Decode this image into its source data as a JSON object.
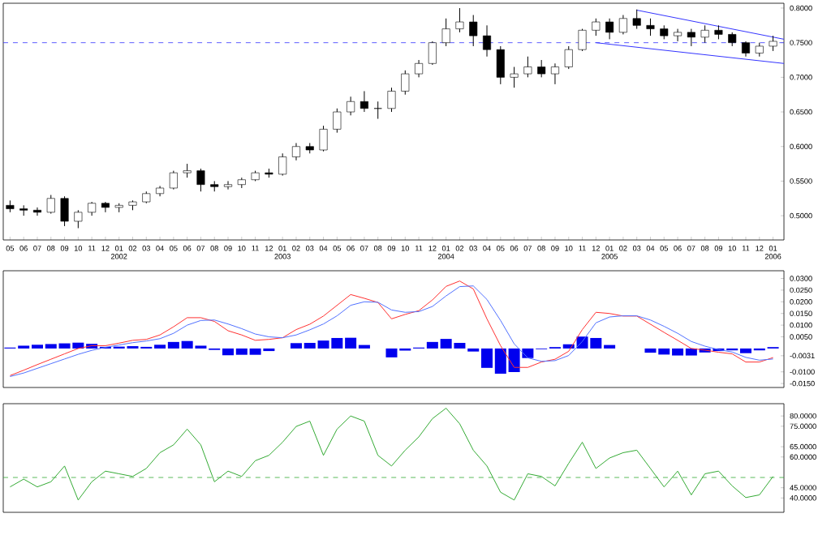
{
  "chart_data": [
    {
      "type": "candlestick",
      "x": [
        "2001-05",
        "2001-06",
        "2001-07",
        "2001-08",
        "2001-09",
        "2001-10",
        "2001-11",
        "2001-12",
        "2002-01",
        "2002-02",
        "2002-03",
        "2002-04",
        "2002-05",
        "2002-06",
        "2002-07",
        "2002-08",
        "2002-09",
        "2002-10",
        "2002-11",
        "2002-12",
        "2003-01",
        "2003-02",
        "2003-03",
        "2003-04",
        "2003-05",
        "2003-06",
        "2003-07",
        "2003-08",
        "2003-09",
        "2003-10",
        "2003-11",
        "2003-12",
        "2004-01",
        "2004-02",
        "2004-03",
        "2004-04",
        "2004-05",
        "2004-06",
        "2004-07",
        "2004-08",
        "2004-09",
        "2004-10",
        "2004-11",
        "2004-12",
        "2005-01",
        "2005-02",
        "2005-03",
        "2005-04",
        "2005-05",
        "2005-06",
        "2005-07",
        "2005-08",
        "2005-09",
        "2005-10",
        "2005-11",
        "2005-12",
        "2006-01"
      ],
      "ohlc": [
        [
          0.515,
          0.522,
          0.505,
          0.51
        ],
        [
          0.51,
          0.515,
          0.5,
          0.508
        ],
        [
          0.508,
          0.512,
          0.5,
          0.505
        ],
        [
          0.505,
          0.53,
          0.503,
          0.525
        ],
        [
          0.525,
          0.528,
          0.485,
          0.492
        ],
        [
          0.492,
          0.508,
          0.482,
          0.505
        ],
        [
          0.505,
          0.52,
          0.5,
          0.518
        ],
        [
          0.518,
          0.52,
          0.505,
          0.512
        ],
        [
          0.512,
          0.518,
          0.505,
          0.515
        ],
        [
          0.515,
          0.522,
          0.508,
          0.52
        ],
        [
          0.52,
          0.535,
          0.518,
          0.532
        ],
        [
          0.532,
          0.543,
          0.528,
          0.54
        ],
        [
          0.54,
          0.565,
          0.538,
          0.562
        ],
        [
          0.562,
          0.575,
          0.555,
          0.565
        ],
        [
          0.565,
          0.568,
          0.535,
          0.545
        ],
        [
          0.545,
          0.55,
          0.535,
          0.542
        ],
        [
          0.542,
          0.55,
          0.538,
          0.545
        ],
        [
          0.545,
          0.555,
          0.54,
          0.552
        ],
        [
          0.552,
          0.565,
          0.55,
          0.562
        ],
        [
          0.562,
          0.568,
          0.555,
          0.56
        ],
        [
          0.56,
          0.59,
          0.558,
          0.585
        ],
        [
          0.585,
          0.605,
          0.58,
          0.6
        ],
        [
          0.6,
          0.605,
          0.59,
          0.595
        ],
        [
          0.595,
          0.63,
          0.593,
          0.625
        ],
        [
          0.625,
          0.655,
          0.62,
          0.65
        ],
        [
          0.65,
          0.672,
          0.645,
          0.665
        ],
        [
          0.665,
          0.68,
          0.65,
          0.655
        ],
        [
          0.655,
          0.665,
          0.64,
          0.655
        ],
        [
          0.655,
          0.685,
          0.65,
          0.68
        ],
        [
          0.68,
          0.71,
          0.675,
          0.705
        ],
        [
          0.705,
          0.725,
          0.7,
          0.72
        ],
        [
          0.72,
          0.752,
          0.718,
          0.75
        ],
        [
          0.75,
          0.785,
          0.745,
          0.77
        ],
        [
          0.77,
          0.8,
          0.765,
          0.78
        ],
        [
          0.78,
          0.79,
          0.745,
          0.76
        ],
        [
          0.76,
          0.775,
          0.73,
          0.74
        ],
        [
          0.74,
          0.745,
          0.69,
          0.7
        ],
        [
          0.7,
          0.715,
          0.685,
          0.705
        ],
        [
          0.705,
          0.73,
          0.7,
          0.715
        ],
        [
          0.715,
          0.725,
          0.7,
          0.705
        ],
        [
          0.705,
          0.72,
          0.69,
          0.715
        ],
        [
          0.715,
          0.745,
          0.712,
          0.74
        ],
        [
          0.74,
          0.77,
          0.738,
          0.768
        ],
        [
          0.768,
          0.785,
          0.76,
          0.78
        ],
        [
          0.78,
          0.785,
          0.755,
          0.765
        ],
        [
          0.765,
          0.79,
          0.762,
          0.785
        ],
        [
          0.785,
          0.798,
          0.77,
          0.775
        ],
        [
          0.775,
          0.785,
          0.76,
          0.77
        ],
        [
          0.77,
          0.775,
          0.755,
          0.76
        ],
        [
          0.76,
          0.77,
          0.752,
          0.765
        ],
        [
          0.765,
          0.77,
          0.745,
          0.758
        ],
        [
          0.758,
          0.775,
          0.75,
          0.768
        ],
        [
          0.768,
          0.775,
          0.755,
          0.762
        ],
        [
          0.762,
          0.765,
          0.745,
          0.75
        ],
        [
          0.75,
          0.752,
          0.73,
          0.735
        ],
        [
          0.735,
          0.75,
          0.73,
          0.745
        ],
        [
          0.745,
          0.76,
          0.738,
          0.752
        ]
      ],
      "series": [
        {
          "type": "line",
          "color": "#3333ff",
          "x": [
            "2005-03",
            "2006-01-25"
          ],
          "values": [
            0.797,
            0.755
          ]
        },
        {
          "type": "line",
          "color": "#3333ff",
          "x": [
            "2004-12",
            "2006-01-25"
          ],
          "values": [
            0.75,
            0.72
          ]
        }
      ],
      "ref_lines": [
        {
          "axis": "y",
          "value": 0.75,
          "color": "#3333ff",
          "line_style": "dashed"
        }
      ],
      "xlim": [
        "2001-04-16",
        "2006-01-25"
      ],
      "xticks": [
        {
          "value": "2001-05",
          "label": "05"
        },
        {
          "value": "2001-06",
          "label": "06"
        },
        {
          "value": "2001-07",
          "label": "07"
        },
        {
          "value": "2001-08",
          "label": "08"
        },
        {
          "value": "2001-09",
          "label": "09"
        },
        {
          "value": "2001-10",
          "label": "10"
        },
        {
          "value": "2001-11",
          "label": "11"
        },
        {
          "value": "2001-12",
          "label": "12"
        },
        {
          "value": "2002-01",
          "label": "01"
        },
        {
          "value": "2002-02",
          "label": "02"
        },
        {
          "value": "2002-03",
          "label": "03"
        },
        {
          "value": "2002-04",
          "label": "04"
        },
        {
          "value": "2002-05",
          "label": "05"
        },
        {
          "value": "2002-06",
          "label": "06"
        },
        {
          "value": "2002-07",
          "label": "07"
        },
        {
          "value": "2002-08",
          "label": "08"
        },
        {
          "value": "2002-09",
          "label": "09"
        },
        {
          "value": "2002-10",
          "label": "10"
        },
        {
          "value": "2002-11",
          "label": "11"
        },
        {
          "value": "2002-12",
          "label": "12"
        },
        {
          "value": "2003-01",
          "label": "01"
        },
        {
          "value": "2003-02",
          "label": "02"
        },
        {
          "value": "2003-03",
          "label": "03"
        },
        {
          "value": "2003-04",
          "label": "04"
        },
        {
          "value": "2003-05",
          "label": "05"
        },
        {
          "value": "2003-06",
          "label": "06"
        },
        {
          "value": "2003-07",
          "label": "07"
        },
        {
          "value": "2003-08",
          "label": "08"
        },
        {
          "value": "2003-09",
          "label": "09"
        },
        {
          "value": "2003-10",
          "label": "10"
        },
        {
          "value": "2003-11",
          "label": "11"
        },
        {
          "value": "2003-12",
          "label": "12"
        },
        {
          "value": "2004-01",
          "label": "01"
        },
        {
          "value": "2004-02",
          "label": "02"
        },
        {
          "value": "2004-03",
          "label": "03"
        },
        {
          "value": "2004-04",
          "label": "04"
        },
        {
          "value": "2004-05",
          "label": "05"
        },
        {
          "value": "2004-06",
          "label": "06"
        },
        {
          "value": "2004-07",
          "label": "07"
        },
        {
          "value": "2004-08",
          "label": "08"
        },
        {
          "value": "2004-09",
          "label": "09"
        },
        {
          "value": "2004-10",
          "label": "10"
        },
        {
          "value": "2004-11",
          "label": "11"
        },
        {
          "value": "2004-12",
          "label": "12"
        },
        {
          "value": "2005-01",
          "label": "01"
        },
        {
          "value": "2005-02",
          "label": "02"
        },
        {
          "value": "2005-03",
          "label": "03"
        },
        {
          "value": "2005-04",
          "label": "04"
        },
        {
          "value": "2005-05",
          "label": "05"
        },
        {
          "value": "2005-06",
          "label": "06"
        },
        {
          "value": "2005-07",
          "label": "07"
        },
        {
          "value": "2005-08",
          "label": "08"
        },
        {
          "value": "2005-09",
          "label": "09"
        },
        {
          "value": "2005-10",
          "label": "10"
        },
        {
          "value": "2005-11",
          "label": "11"
        },
        {
          "value": "2005-12",
          "label": "12"
        },
        {
          "value": "2006-01",
          "label": "01"
        }
      ],
      "x2lim": [
        "2001-04-16",
        "2006-01-25"
      ],
      "x2ticks": [
        {
          "value": "2002-01",
          "label": "2002"
        },
        {
          "value": "2003-01",
          "label": "2003"
        },
        {
          "value": "2004-01",
          "label": "2004"
        },
        {
          "value": "2005-01",
          "label": "2005"
        },
        {
          "value": "2006-01",
          "label": "2006"
        }
      ],
      "ylim": [
        0.465,
        0.807
      ],
      "yticks": [
        {
          "value": 0.5,
          "label": "0.5000"
        },
        {
          "value": 0.55,
          "label": "0.5500"
        },
        {
          "value": 0.6,
          "label": "0.6000"
        },
        {
          "value": 0.65,
          "label": "0.6500"
        },
        {
          "value": 0.7,
          "label": "0.7000"
        },
        {
          "value": 0.75,
          "label": "0.7500"
        },
        {
          "value": 0.8,
          "label": "0.8000"
        }
      ]
    },
    {
      "type": "line",
      "x": [
        "2001-05",
        "2001-06",
        "2001-07",
        "2001-08",
        "2001-09",
        "2001-10",
        "2001-11",
        "2001-12",
        "2002-01",
        "2002-02",
        "2002-03",
        "2002-04",
        "2002-05",
        "2002-06",
        "2002-07",
        "2002-08",
        "2002-09",
        "2002-10",
        "2002-11",
        "2002-12",
        "2003-01",
        "2003-02",
        "2003-03",
        "2003-04",
        "2003-05",
        "2003-06",
        "2003-07",
        "2003-08",
        "2003-09",
        "2003-10",
        "2003-11",
        "2003-12",
        "2004-01",
        "2004-02",
        "2004-03",
        "2004-04",
        "2004-05",
        "2004-06",
        "2004-07",
        "2004-08",
        "2004-09",
        "2004-10",
        "2004-11",
        "2004-12",
        "2005-01",
        "2005-02",
        "2005-03",
        "2005-04",
        "2005-05",
        "2005-06",
        "2005-07",
        "2005-08",
        "2005-09",
        "2005-10",
        "2005-11",
        "2005-12",
        "2006-01"
      ],
      "series": [
        {
          "type": "bar",
          "color": "#0000ee",
          "values": [
            0.0004,
            0.0012,
            0.0016,
            0.0019,
            0.0022,
            0.0025,
            0.002,
            0.0007,
            0.0008,
            0.001,
            0.0007,
            0.0016,
            0.0028,
            0.0032,
            0.0012,
            -0.0006,
            -0.0029,
            -0.0027,
            -0.0027,
            -0.0011,
            0,
            0.0023,
            0.0024,
            0.0034,
            0.0045,
            0.0046,
            0.0015,
            null,
            -0.0038,
            -0.0009,
            0.0004,
            0.0028,
            0.0041,
            0.0024,
            -0.0013,
            -0.0083,
            -0.0108,
            -0.0101,
            -0.0041,
            -0.0003,
            0.0006,
            0.0018,
            0.0051,
            0.0045,
            0.0015,
            null,
            null,
            -0.0018,
            -0.0026,
            -0.003,
            -0.003,
            -0.0017,
            -0.0011,
            -0.0008,
            -0.002,
            -0.0008,
            0.0006
          ]
        },
        {
          "type": "line",
          "color": "#ff3030",
          "values": [
            -0.0116,
            -0.0093,
            -0.0069,
            -0.0046,
            -0.0023,
            0,
            0.0012,
            0.0012,
            0.0023,
            0.0035,
            0.0039,
            0.0058,
            0.0093,
            0.0132,
            0.0132,
            0.0116,
            0.0076,
            0.0058,
            0.0035,
            0.0039,
            0.0046,
            0.0081,
            0.0104,
            0.0139,
            0.0185,
            0.0231,
            0.0215,
            0.0197,
            0.0127,
            0.0146,
            0.0162,
            0.0208,
            0.0266,
            0.0289,
            0.0255,
            0.0127,
            0.0012,
            -0.0081,
            -0.0081,
            -0.0058,
            -0.0046,
            -0.0012,
            0.0081,
            0.0155,
            0.015,
            0.0139,
            0.0139,
            0.0104,
            0.0069,
            0.0035,
            0,
            -0.0007,
            -0.0016,
            -0.0023,
            -0.0058,
            -0.0058,
            -0.0039
          ]
        },
        {
          "type": "line",
          "color": "#5070ff",
          "values": [
            -0.012,
            -0.0105,
            -0.0085,
            -0.0065,
            -0.0045,
            -0.0025,
            -0.0008,
            0.0005,
            0.0015,
            0.0025,
            0.0032,
            0.0042,
            0.0065,
            0.01,
            0.012,
            0.0122,
            0.0105,
            0.0085,
            0.0062,
            0.005,
            0.0046,
            0.0058,
            0.008,
            0.0105,
            0.014,
            0.0185,
            0.02,
            0.0198,
            0.0165,
            0.0155,
            0.0158,
            0.018,
            0.0225,
            0.0265,
            0.0268,
            0.021,
            0.012,
            0.002,
            -0.004,
            -0.0055,
            -0.0052,
            -0.003,
            0.003,
            0.011,
            0.0135,
            0.014,
            0.014,
            0.0122,
            0.0095,
            0.0065,
            0.003,
            0.001,
            -0.0005,
            -0.0015,
            -0.0038,
            -0.005,
            -0.0045
          ]
        }
      ],
      "xlim": [
        "2001-04-16",
        "2006-01-25"
      ],
      "ylim": [
        -0.0167,
        0.0333
      ],
      "yticks": [
        {
          "value": 0.03,
          "label": "0.0300"
        },
        {
          "value": 0.025,
          "label": "0.0250"
        },
        {
          "value": 0.02,
          "label": "0.0200"
        },
        {
          "value": 0.015,
          "label": "0.0150"
        },
        {
          "value": 0.01,
          "label": "0.0100"
        },
        {
          "value": 0.005,
          "label": "0.0050"
        },
        {
          "value": -0.0031,
          "label": "-0.0031"
        },
        {
          "value": -0.01,
          "label": "-0.0100"
        },
        {
          "value": -0.015,
          "label": "-0.0150"
        }
      ],
      "tick_labels": "y"
    },
    {
      "type": "line",
      "x": [
        "2001-05",
        "2001-06",
        "2001-07",
        "2001-08",
        "2001-09",
        "2001-10",
        "2001-11",
        "2001-12",
        "2002-01",
        "2002-02",
        "2002-03",
        "2002-04",
        "2002-05",
        "2002-06",
        "2002-07",
        "2002-08",
        "2002-09",
        "2002-10",
        "2002-11",
        "2002-12",
        "2003-01",
        "2003-02",
        "2003-03",
        "2003-04",
        "2003-05",
        "2003-06",
        "2003-07",
        "2003-08",
        "2003-09",
        "2003-10",
        "2003-11",
        "2003-12",
        "2004-01",
        "2004-02",
        "2004-03",
        "2004-04",
        "2004-05",
        "2004-06",
        "2004-07",
        "2004-08",
        "2004-09",
        "2004-10",
        "2004-11",
        "2004-12",
        "2005-01",
        "2005-02",
        "2005-03",
        "2005-04",
        "2005-05",
        "2005-06",
        "2005-07",
        "2005-08",
        "2005-09",
        "2005-10",
        "2005-11",
        "2005-12",
        "2006-01"
      ],
      "series": [
        {
          "type": "line",
          "color": "#33aa33",
          "values": [
            45.4,
            49.2,
            45.4,
            47.9,
            55.6,
            39,
            47.9,
            53.1,
            51.8,
            50.5,
            54.4,
            62.1,
            65.9,
            73.6,
            65.9,
            47.9,
            53.1,
            50.5,
            58.2,
            60.8,
            67.2,
            74.9,
            77.5,
            60.8,
            73.6,
            80,
            77.5,
            60.8,
            55.6,
            63.3,
            69.8,
            78.7,
            83.8,
            76.2,
            63.3,
            55.6,
            42.8,
            39,
            51.8,
            50.5,
            45.9,
            56.9,
            67.2,
            54.4,
            59.5,
            62.1,
            63.3,
            54.4,
            45.4,
            53.1,
            41.5,
            51.8,
            53.1,
            45.9,
            40.2,
            41.5,
            50.5
          ]
        }
      ],
      "ref_lines": [
        {
          "axis": "y",
          "value": 50,
          "color": "#33aa33",
          "line_style": "dashed"
        }
      ],
      "xlim": [
        "2001-04-16",
        "2006-01-25"
      ],
      "ylim": [
        33,
        86
      ],
      "yticks": [
        {
          "value": 80,
          "label": "80.0000"
        },
        {
          "value": 75,
          "label": "75.0000"
        },
        {
          "value": 65,
          "label": "65.0000"
        },
        {
          "value": 60,
          "label": "60.0000"
        },
        {
          "value": 45,
          "label": "45.0000"
        },
        {
          "value": 40,
          "label": "40.0000"
        }
      ],
      "tick_labels": "y"
    }
  ]
}
